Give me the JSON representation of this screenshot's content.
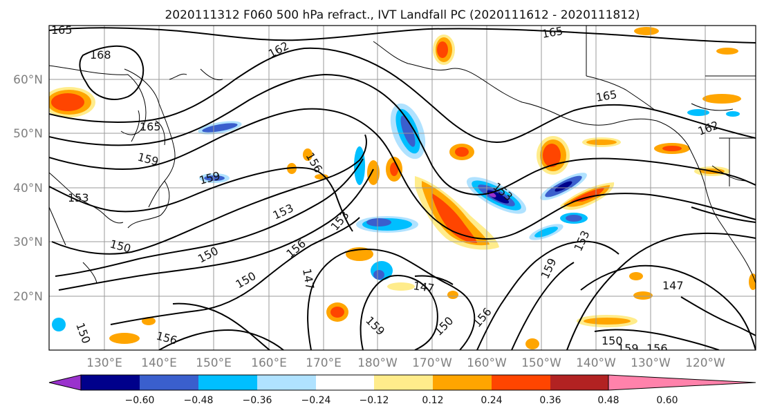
{
  "map": {
    "title": "2020111312 F060 500 hPa refract., IVT Landfall PC (2020111612 - 2020111812)",
    "lat_labels": [
      "60°N",
      "50°N",
      "40°N",
      "30°N",
      "20°N"
    ],
    "lon_labels": [
      "130°E",
      "140°E",
      "150°E",
      "160°E",
      "170°E",
      "180°W",
      "170°W",
      "160°W",
      "150°W",
      "140°W",
      "130°W",
      "120°W"
    ],
    "contour_labels": [
      "165",
      "168",
      "162",
      "165",
      "165",
      "159",
      "159",
      "153",
      "153",
      "150",
      "150",
      "156",
      "150",
      "147",
      "147",
      "150",
      "156",
      "159",
      "159",
      "156",
      "153",
      "153",
      "153",
      "147",
      "150",
      "162",
      "165",
      "150",
      "156",
      "159",
      "156"
    ],
    "colorbar": {
      "ticks": [
        "−0.60",
        "−0.48",
        "−0.36",
        "−0.24",
        "−0.12",
        "0.12",
        "0.24",
        "0.36",
        "0.48",
        "0.60"
      ],
      "colors": [
        "#9a32cd",
        "#00008b",
        "#3a5fcd",
        "#00bfff",
        "#b0e2ff",
        "#ffffff",
        "#ffec8b",
        "#ffa500",
        "#ff4500",
        "#b22222",
        "#ff82ab"
      ]
    },
    "palette": {
      "neg_strong": "#3a5fcd",
      "neg_mid": "#00bfff",
      "neg_weak": "#b0e2ff",
      "pos_weak": "#ffec8b",
      "pos_mid": "#ffa500",
      "pos_strong": "#ff4500",
      "pos_max": "#b22222"
    }
  }
}
